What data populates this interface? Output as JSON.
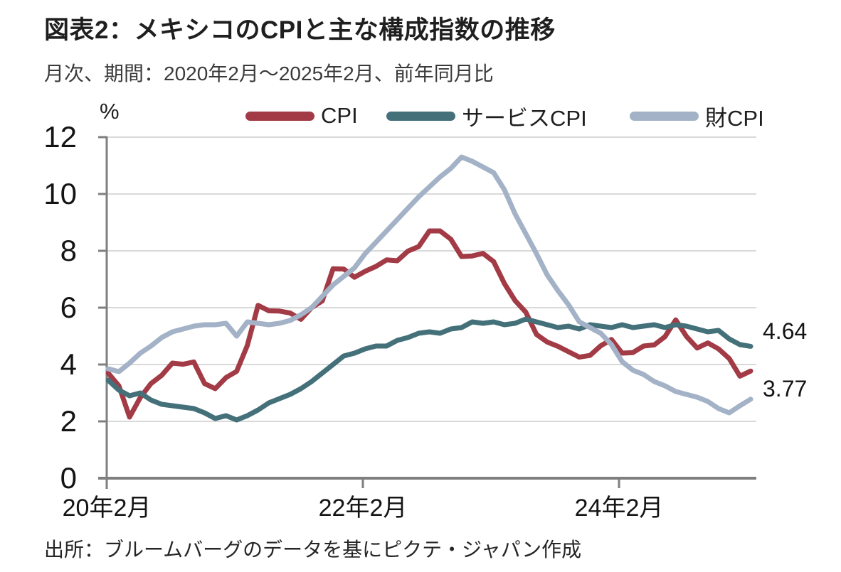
{
  "title": "図表2：メキシコのCPIと主な構成指数の推移",
  "subtitle": "月次、期間：2020年2月～2025年2月、前年同月比",
  "unit_label": "%",
  "source": "出所：ブルームバーグのデータを基にピクテ・ジャパン作成",
  "colors": {
    "cpi_line": "#a23b45",
    "services_line": "#44707a",
    "goods_line": "#a3b2c6",
    "grid": "#d9d9d9",
    "axis": "#7f7f7f",
    "text": "#141414"
  },
  "chart_data": {
    "type": "line",
    "frequency": "monthly",
    "x_start": "2020-02",
    "x_end": "2025-02",
    "x_tick_labels": [
      "20年2月",
      "22年2月",
      "24年2月"
    ],
    "x_tick_month_index": [
      0,
      24,
      48
    ],
    "ylabel": "%",
    "y_ticks": [
      0,
      2,
      4,
      6,
      8,
      10,
      12
    ],
    "ylim": [
      0,
      12
    ],
    "grid": true,
    "legend_position": "top",
    "series": [
      {
        "name": "CPI",
        "color_key": "cpi_line",
        "end_label": "3.77",
        "values": [
          3.7,
          3.25,
          2.15,
          2.84,
          3.33,
          3.62,
          4.05,
          4.01,
          4.09,
          3.33,
          3.15,
          3.54,
          3.76,
          4.67,
          6.08,
          5.89,
          5.88,
          5.81,
          5.59,
          6.0,
          6.24,
          7.37,
          7.36,
          7.07,
          7.28,
          7.45,
          7.68,
          7.65,
          7.99,
          8.15,
          8.7,
          8.7,
          8.41,
          7.8,
          7.82,
          7.91,
          7.62,
          6.85,
          6.25,
          5.84,
          5.06,
          4.79,
          4.64,
          4.45,
          4.26,
          4.32,
          4.66,
          4.88,
          4.4,
          4.42,
          4.65,
          4.69,
          4.98,
          5.57,
          4.99,
          4.58,
          4.76,
          4.55,
          4.21,
          3.59,
          3.77
        ]
      },
      {
        "name": "サービスCPI",
        "color_key": "services_line",
        "end_label": "4.64",
        "values": [
          3.45,
          3.1,
          2.9,
          3.0,
          2.75,
          2.6,
          2.55,
          2.5,
          2.45,
          2.3,
          2.1,
          2.2,
          2.05,
          2.2,
          2.4,
          2.65,
          2.8,
          2.95,
          3.15,
          3.4,
          3.7,
          4.0,
          4.3,
          4.4,
          4.55,
          4.65,
          4.65,
          4.85,
          4.95,
          5.1,
          5.15,
          5.1,
          5.25,
          5.3,
          5.5,
          5.45,
          5.5,
          5.4,
          5.45,
          5.6,
          5.5,
          5.4,
          5.3,
          5.35,
          5.25,
          5.4,
          5.35,
          5.3,
          5.4,
          5.3,
          5.35,
          5.4,
          5.3,
          5.4,
          5.35,
          5.25,
          5.15,
          5.2,
          4.9,
          4.7,
          4.64
        ]
      },
      {
        "name": "財CPI",
        "color_key": "goods_line",
        "end_label": null,
        "values": [
          3.85,
          3.75,
          4.05,
          4.4,
          4.65,
          4.95,
          5.15,
          5.25,
          5.35,
          5.4,
          5.4,
          5.45,
          5.0,
          5.5,
          5.45,
          5.4,
          5.45,
          5.55,
          5.75,
          6.0,
          6.4,
          6.8,
          7.1,
          7.4,
          7.9,
          8.3,
          8.7,
          9.1,
          9.5,
          9.9,
          10.25,
          10.6,
          10.9,
          11.3,
          11.15,
          10.95,
          10.75,
          10.15,
          9.3,
          8.6,
          7.9,
          7.15,
          6.6,
          6.1,
          5.5,
          5.3,
          5.1,
          4.7,
          4.1,
          3.8,
          3.65,
          3.4,
          3.25,
          3.05,
          2.95,
          2.85,
          2.7,
          2.45,
          2.3,
          2.55,
          2.78
        ]
      }
    ]
  }
}
